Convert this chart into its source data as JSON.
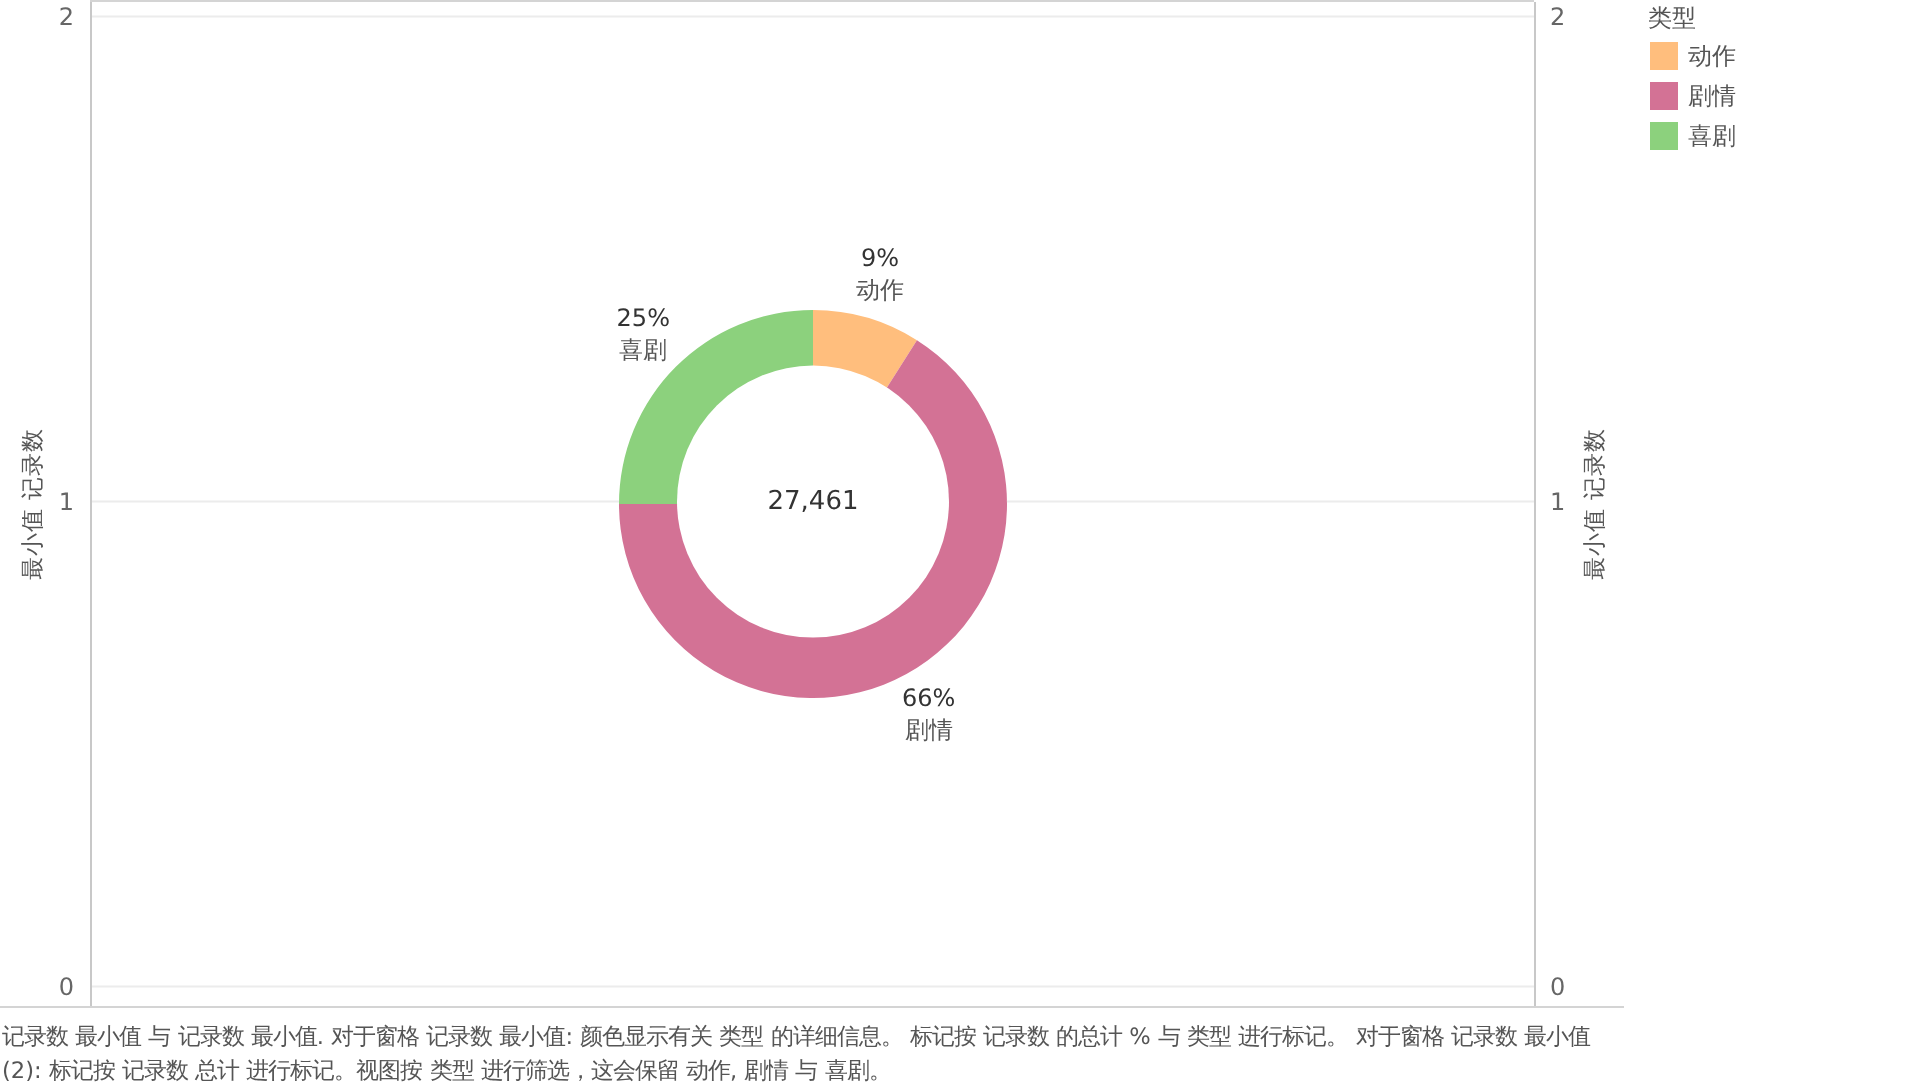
{
  "chart_data": [
    {
      "type": "donut",
      "categories": [
        "动作",
        "剧情",
        "喜剧"
      ],
      "values": [
        9,
        66,
        25
      ],
      "colors": [
        "#ffbe7d",
        "#d37295",
        "#8cd17d"
      ],
      "value_labels": [
        "9%",
        "66%",
        "25%"
      ],
      "legend_title": "类型",
      "legend": "top right",
      "annotations": [
        "记录数 最小值 与 记录数 最小值. 对于窗格 记录数 最小值: 颜色显示有关 类型 的详细信息。 标记按 记录数 的总计 % 与 类型 进行标记。 对于窗格 记录数 最小值 (2): 标记按 记录数 总计 进行标记。视图按 类型 进行筛选，这会保留 动作, 剧情 与 喜剧。"
      ]
    },
    {
      "type": "scatter",
      "categories": [
        null
      ],
      "series": [
        {
          "color": "#ffffff",
          "values": [
            1
          ]
        }
      ],
      "marker": "circle",
      "ylabel": "最小值 记录数",
      "y2label": "最小值 记录数",
      "ylim": [
        -0.04,
        2.03
      ],
      "yticks": [
        0,
        1,
        2
      ],
      "y2lim": [
        -0.04,
        2.03
      ],
      "y2ticks": [
        0,
        1,
        2
      ],
      "grid": "y",
      "annotations": [
        {
          "text": "27,461",
          "y": 1
        }
      ]
    }
  ]
}
